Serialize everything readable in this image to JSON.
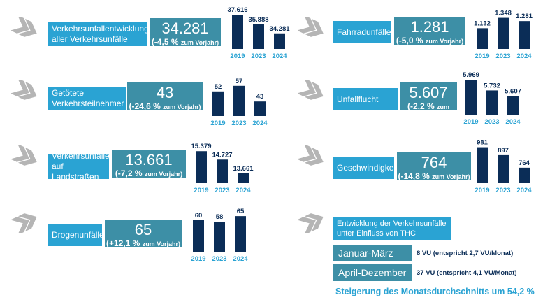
{
  "colors": {
    "label_bg": "#2aa3d3",
    "kpi_bg": "#3d8fa6",
    "bar": "#0b2d57",
    "year_text": "#2aa3d3",
    "arrow": "#b5b5b5"
  },
  "icons": {
    "arrows": "triple-chevron-arrow-icon"
  },
  "panels": [
    {
      "label": "Verkehrsunfallentwicklung aller Verkehrsunfälle",
      "value": "34.281",
      "change": "(-4,5 %",
      "change_suffix": "zum Vorjahr)"
    },
    {
      "label": "Fahrradunfälle",
      "value": "1.281",
      "change": "(-5,0 %",
      "change_suffix": "zum Vorjahr)"
    },
    {
      "label": "Getötete Verkehrsteilnehmer",
      "value": "43",
      "change": "(-24,6 %",
      "change_suffix": "zum Vorjahr)"
    },
    {
      "label": "Unfallflucht",
      "value": "5.607",
      "change": "(-2,2 %",
      "change_suffix": "zum Vorjahr)"
    },
    {
      "label": "Verkehrsunfälle auf Landstraßen",
      "value": "13.661",
      "change": "(-7,2 %",
      "change_suffix": "zum Vorjahr)"
    },
    {
      "label": "Geschwindigkeit",
      "value": "764",
      "change": "(-14,8 %",
      "change_suffix": "zum Vorjahr)"
    },
    {
      "label": "Drogenunfälle",
      "value": "65",
      "change": "(+12,1 %",
      "change_suffix": "zum Vorjahr)"
    }
  ],
  "chart_data": [
    {
      "type": "bar",
      "categories": [
        "2019",
        "2023",
        "2024"
      ],
      "values": [
        37616,
        35888,
        34281
      ],
      "value_labels": [
        "37.616",
        "35.888",
        "34.281"
      ],
      "ylim": [
        31500,
        38000
      ]
    },
    {
      "type": "bar",
      "categories": [
        "2019",
        "2023",
        "2024"
      ],
      "values": [
        1132,
        1348,
        1281
      ],
      "value_labels": [
        "1.132",
        "1.348",
        "1.281"
      ],
      "ylim": [
        700,
        1400
      ]
    },
    {
      "type": "bar",
      "categories": [
        "2019",
        "2023",
        "2024"
      ],
      "values": [
        52,
        57,
        43
      ],
      "value_labels": [
        "52",
        "57",
        "43"
      ],
      "ylim": [
        30,
        60
      ]
    },
    {
      "type": "bar",
      "categories": [
        "2019",
        "2023",
        "2024"
      ],
      "values": [
        5969,
        5732,
        5607
      ],
      "value_labels": [
        "5.969",
        "5.732",
        "5.607"
      ],
      "ylim": [
        5200,
        6000
      ]
    },
    {
      "type": "bar",
      "categories": [
        "2019",
        "2023",
        "2024"
      ],
      "values": [
        15379,
        14727,
        13661
      ],
      "value_labels": [
        "15.379",
        "14.727",
        "13.661"
      ],
      "ylim": [
        12900,
        15500
      ]
    },
    {
      "type": "bar",
      "categories": [
        "2019",
        "2023",
        "2024"
      ],
      "values": [
        981,
        897,
        764
      ],
      "value_labels": [
        "981",
        "897",
        "764"
      ],
      "ylim": [
        600,
        1000
      ]
    },
    {
      "type": "bar",
      "categories": [
        "2019",
        "2023",
        "2024"
      ],
      "values": [
        60,
        58,
        65
      ],
      "value_labels": [
        "60",
        "58",
        "65"
      ],
      "ylim": [
        20,
        66
      ]
    }
  ],
  "thc": {
    "title": "Entwicklung der Verkehrsunfälle unter Einfluss von THC",
    "periods": [
      {
        "label": "Januar-März",
        "note": "8 VU (entspricht 2,7 VU/Monat)"
      },
      {
        "label": "April-Dezember",
        "note": "37 VU (entspricht 4,1 VU/Monat)"
      }
    ],
    "summary": "Steigerung des Monatsdurchschnitts um 54,2 %"
  }
}
